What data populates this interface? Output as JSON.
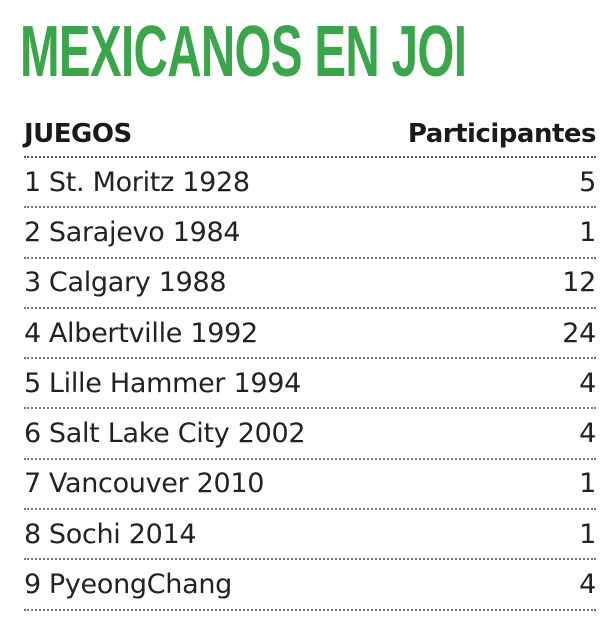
{
  "colors": {
    "title": "#3aa54a",
    "text": "#222222",
    "rule": "#777777"
  },
  "chart_data": {
    "type": "table",
    "title": "MEXICANOS EN JOI",
    "columns": [
      "JUEGOS",
      "Participantes"
    ],
    "rows": [
      {
        "num": "1",
        "game": "St. Moritz 1928",
        "participants": "5"
      },
      {
        "num": "2",
        "game": "Sarajevo 1984",
        "participants": "1"
      },
      {
        "num": "3",
        "game": "Calgary 1988",
        "participants": "12"
      },
      {
        "num": "4",
        "game": "Albertville 1992",
        "participants": "24"
      },
      {
        "num": "5",
        "game": "Lille Hammer 1994",
        "participants": "4"
      },
      {
        "num": "6",
        "game": "Salt Lake City 2002",
        "participants": "4"
      },
      {
        "num": "7",
        "game": "Vancouver 2010",
        "participants": "1"
      },
      {
        "num": "8",
        "game": "Sochi 2014",
        "participants": "1"
      },
      {
        "num": "9",
        "game": "PyeongChang",
        "participants": "4"
      }
    ]
  }
}
